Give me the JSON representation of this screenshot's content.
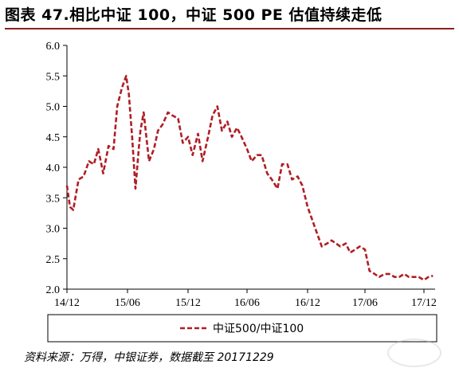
{
  "title": "图表 47.相比中证 100，中证 500 PE 估值持续走低",
  "source": "资料来源：万得，中银证券，数据截至 20171229",
  "colors": {
    "series": "#b01e24",
    "axis": "#000000",
    "title_rule": "#8c2020"
  },
  "chart_data": {
    "type": "line",
    "ylim": [
      2.0,
      6.0
    ],
    "yticks": [
      "6.0",
      "5.5",
      "5.0",
      "4.5",
      "4.0",
      "3.5",
      "3.0",
      "2.5",
      "2.0"
    ],
    "xticks": [
      "14/12",
      "15/06",
      "15/12",
      "16/06",
      "16/12",
      "17/06",
      "17/12"
    ],
    "legend_position": "bottom",
    "grid": false,
    "series": [
      {
        "name": "中证500/中证100",
        "style": "dashed",
        "x": [
          "2014-12-01",
          "2014-12-10",
          "2014-12-20",
          "2015-01-05",
          "2015-01-20",
          "2015-02-05",
          "2015-02-20",
          "2015-03-05",
          "2015-03-20",
          "2015-04-05",
          "2015-04-20",
          "2015-05-01",
          "2015-05-15",
          "2015-05-28",
          "2015-06-05",
          "2015-06-15",
          "2015-06-25",
          "2015-07-05",
          "2015-07-10",
          "2015-07-20",
          "2015-08-05",
          "2015-08-20",
          "2015-09-01",
          "2015-09-15",
          "2015-10-01",
          "2015-10-15",
          "2015-11-01",
          "2015-11-15",
          "2015-12-01",
          "2015-12-15",
          "2016-01-01",
          "2016-01-15",
          "2016-02-01",
          "2016-02-15",
          "2016-03-01",
          "2016-03-15",
          "2016-04-01",
          "2016-04-15",
          "2016-05-01",
          "2016-05-15",
          "2016-06-01",
          "2016-06-15",
          "2016-07-01",
          "2016-07-15",
          "2016-08-01",
          "2016-08-15",
          "2016-09-01",
          "2016-09-15",
          "2016-10-01",
          "2016-10-15",
          "2016-11-01",
          "2016-11-15",
          "2016-12-01",
          "2016-12-15",
          "2017-01-01",
          "2017-01-15",
          "2017-02-01",
          "2017-02-15",
          "2017-03-01",
          "2017-03-15",
          "2017-04-01",
          "2017-04-15",
          "2017-05-01",
          "2017-05-15",
          "2017-06-01",
          "2017-06-15",
          "2017-07-01",
          "2017-07-15",
          "2017-08-01",
          "2017-08-15",
          "2017-09-01",
          "2017-09-15",
          "2017-10-01",
          "2017-10-15",
          "2017-11-01",
          "2017-11-15",
          "2017-12-01",
          "2017-12-15",
          "2017-12-29"
        ],
        "values": [
          3.7,
          3.35,
          3.3,
          3.8,
          3.85,
          4.1,
          4.05,
          4.3,
          3.9,
          4.35,
          4.3,
          5.0,
          5.3,
          5.5,
          5.2,
          4.5,
          3.65,
          4.3,
          4.6,
          4.9,
          4.1,
          4.3,
          4.6,
          4.7,
          4.9,
          4.85,
          4.8,
          4.4,
          4.5,
          4.2,
          4.55,
          4.1,
          4.5,
          4.85,
          5.0,
          4.6,
          4.75,
          4.5,
          4.65,
          4.5,
          4.3,
          4.1,
          4.2,
          4.2,
          3.9,
          3.8,
          3.65,
          4.05,
          4.05,
          3.8,
          3.85,
          3.7,
          3.35,
          3.15,
          2.9,
          2.7,
          2.75,
          2.8,
          2.75,
          2.7,
          2.75,
          2.6,
          2.65,
          2.7,
          2.65,
          2.3,
          2.25,
          2.2,
          2.25,
          2.25,
          2.2,
          2.2,
          2.25,
          2.2,
          2.2,
          2.2,
          2.15,
          2.2,
          2.22
        ]
      }
    ]
  }
}
